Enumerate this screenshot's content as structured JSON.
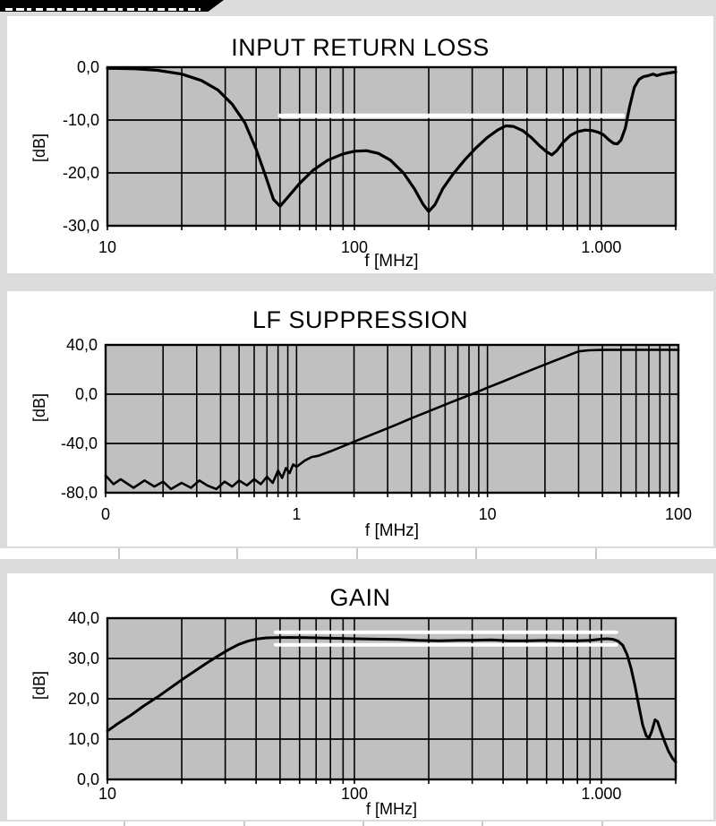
{
  "banner": {
    "text": "",
    "background": "#000000",
    "note_text_cut_off": true
  },
  "colors": {
    "page_band": "#dcdcdc",
    "panel": "#ffffff",
    "plot_bg": "#c0c0c0",
    "grid": "#000000",
    "curve": "#000000",
    "limit_line": "#ffffff",
    "table_row_divider": "#c8c8c8"
  },
  "chart_data": [
    {
      "type": "line",
      "title": "INPUT RETURN LOSS",
      "xlabel": "f [MHz]",
      "ylabel": "[dB]",
      "xscale": "log",
      "xlim": [
        10,
        2000
      ],
      "ylim": [
        -30,
        0
      ],
      "grid": "full log grid, on",
      "xticks": [
        {
          "v": 10,
          "label": "10"
        },
        {
          "v": 100,
          "label": "100"
        },
        {
          "v": 1000,
          "label": "1.000"
        }
      ],
      "yticks": [
        {
          "v": 0,
          "label": "0,0"
        },
        {
          "v": -10,
          "label": "-10,0"
        },
        {
          "v": -20,
          "label": "-20,0"
        },
        {
          "v": -30,
          "label": "-30,0"
        }
      ],
      "ygrid": [
        -10,
        -20
      ],
      "limit_lines": [
        {
          "value": -9.2,
          "from": 50,
          "to": 1220,
          "stroke": 5
        }
      ],
      "series": [
        {
          "name": "input_return_loss",
          "stroke": 3.2,
          "points": [
            [
              10,
              -0.2
            ],
            [
              13,
              -0.3
            ],
            [
              16,
              -0.6
            ],
            [
              20,
              -1.3
            ],
            [
              24,
              -2.5
            ],
            [
              28,
              -4.3
            ],
            [
              32,
              -7
            ],
            [
              36,
              -10.5
            ],
            [
              40,
              -15.5
            ],
            [
              44,
              -21
            ],
            [
              47,
              -25
            ],
            [
              50,
              -26.3
            ],
            [
              54,
              -24.5
            ],
            [
              60,
              -22
            ],
            [
              68,
              -19.5
            ],
            [
              78,
              -17.6
            ],
            [
              90,
              -16.4
            ],
            [
              100,
              -15.9
            ],
            [
              112,
              -15.8
            ],
            [
              125,
              -16.3
            ],
            [
              140,
              -17.6
            ],
            [
              158,
              -20
            ],
            [
              175,
              -23
            ],
            [
              190,
              -26
            ],
            [
              200,
              -27.3
            ],
            [
              212,
              -26
            ],
            [
              228,
              -23
            ],
            [
              250,
              -20.3
            ],
            [
              280,
              -17.5
            ],
            [
              310,
              -15.3
            ],
            [
              345,
              -13.3
            ],
            [
              380,
              -11.9
            ],
            [
              410,
              -11.1
            ],
            [
              440,
              -11.2
            ],
            [
              480,
              -12
            ],
            [
              520,
              -13.3
            ],
            [
              560,
              -14.8
            ],
            [
              600,
              -16
            ],
            [
              630,
              -16.6
            ],
            [
              660,
              -15.8
            ],
            [
              700,
              -14.2
            ],
            [
              750,
              -12.9
            ],
            [
              800,
              -12.2
            ],
            [
              860,
              -11.9
            ],
            [
              920,
              -12
            ],
            [
              970,
              -12.3
            ],
            [
              1020,
              -12.8
            ],
            [
              1070,
              -13.7
            ],
            [
              1120,
              -14.4
            ],
            [
              1160,
              -14.5
            ],
            [
              1200,
              -13.8
            ],
            [
              1250,
              -11.5
            ],
            [
              1300,
              -7.5
            ],
            [
              1360,
              -3.8
            ],
            [
              1420,
              -2.3
            ],
            [
              1480,
              -1.8
            ],
            [
              1550,
              -1.6
            ],
            [
              1620,
              -1.3
            ],
            [
              1680,
              -1.6
            ],
            [
              1760,
              -1.3
            ],
            [
              1870,
              -1.1
            ],
            [
              2000,
              -0.9
            ]
          ]
        }
      ]
    },
    {
      "type": "line",
      "title": "LF SUPPRESSION",
      "xlabel": "f [MHz]",
      "ylabel": "[dB]",
      "xscale": "log",
      "xlim": [
        0.1,
        100
      ],
      "ylim": [
        -80,
        40
      ],
      "grid": "full log grid, on",
      "xticks": [
        {
          "v": 0.1,
          "label": "0"
        },
        {
          "v": 1,
          "label": "1"
        },
        {
          "v": 10,
          "label": "10"
        },
        {
          "v": 100,
          "label": "100"
        }
      ],
      "yticks": [
        {
          "v": 40,
          "label": "40,0"
        },
        {
          "v": 0,
          "label": "0,0"
        },
        {
          "v": -40,
          "label": "-40,0"
        },
        {
          "v": -80,
          "label": "-80,0"
        }
      ],
      "ygrid": [
        0,
        -40
      ],
      "limit_lines": [],
      "series": [
        {
          "name": "lf_suppression",
          "stroke": 2.6,
          "points": [
            [
              0.1,
              -66
            ],
            [
              0.11,
              -73
            ],
            [
              0.12,
              -69
            ],
            [
              0.14,
              -76
            ],
            [
              0.16,
              -70
            ],
            [
              0.18,
              -75
            ],
            [
              0.2,
              -71
            ],
            [
              0.22,
              -77
            ],
            [
              0.25,
              -72
            ],
            [
              0.28,
              -76
            ],
            [
              0.31,
              -70
            ],
            [
              0.34,
              -74
            ],
            [
              0.38,
              -77
            ],
            [
              0.42,
              -71
            ],
            [
              0.46,
              -75
            ],
            [
              0.5,
              -70
            ],
            [
              0.55,
              -74
            ],
            [
              0.6,
              -69
            ],
            [
              0.65,
              -73
            ],
            [
              0.7,
              -67
            ],
            [
              0.75,
              -72
            ],
            [
              0.8,
              -62
            ],
            [
              0.84,
              -68
            ],
            [
              0.88,
              -60
            ],
            [
              0.92,
              -64
            ],
            [
              0.96,
              -57
            ],
            [
              1.0,
              -59
            ],
            [
              1.1,
              -54
            ],
            [
              1.2,
              -51
            ],
            [
              1.3,
              -50
            ],
            [
              1.5,
              -46.5
            ],
            [
              1.8,
              -41.5
            ],
            [
              2.2,
              -36
            ],
            [
              2.7,
              -30.5
            ],
            [
              3.3,
              -25
            ],
            [
              4,
              -19.5
            ],
            [
              5,
              -13.5
            ],
            [
              6,
              -8.5
            ],
            [
              7,
              -4.4
            ],
            [
              8.5,
              0.7
            ],
            [
              10,
              5.3
            ],
            [
              12,
              10.2
            ],
            [
              15,
              16.3
            ],
            [
              18,
              21.2
            ],
            [
              22,
              26.6
            ],
            [
              26,
              31
            ],
            [
              30,
              34.8
            ],
            [
              34,
              35.6
            ],
            [
              40,
              35.9
            ],
            [
              50,
              36
            ],
            [
              62,
              36
            ],
            [
              75,
              36
            ],
            [
              90,
              36
            ],
            [
              100,
              36
            ]
          ]
        }
      ]
    },
    {
      "type": "line",
      "title": "GAIN",
      "xlabel": "f [MHz]",
      "ylabel": "[dB]",
      "xscale": "log",
      "xlim": [
        10,
        2000
      ],
      "ylim": [
        0,
        40
      ],
      "grid": "full log grid, on",
      "xticks": [
        {
          "v": 10,
          "label": "10"
        },
        {
          "v": 100,
          "label": "100"
        },
        {
          "v": 1000,
          "label": "1.000"
        }
      ],
      "yticks": [
        {
          "v": 40,
          "label": "40,0"
        },
        {
          "v": 30,
          "label": "30,0"
        },
        {
          "v": 20,
          "label": "20,0"
        },
        {
          "v": 10,
          "label": "10,0"
        },
        {
          "v": 0,
          "label": "0,0"
        }
      ],
      "ygrid": [
        30,
        20,
        10
      ],
      "limit_lines": [
        {
          "value": 36.5,
          "from": 48,
          "to": 1150,
          "stroke": 4
        },
        {
          "value": 33.4,
          "from": 48,
          "to": 1150,
          "stroke": 4
        }
      ],
      "series": [
        {
          "name": "gain",
          "stroke": 3,
          "points": [
            [
              10,
              12
            ],
            [
              11,
              13.8
            ],
            [
              12.5,
              16
            ],
            [
              14,
              18.2
            ],
            [
              16,
              20.5
            ],
            [
              18,
              22.7
            ],
            [
              20,
              24.7
            ],
            [
              22.5,
              26.8
            ],
            [
              25,
              28.7
            ],
            [
              28,
              30.6
            ],
            [
              31,
              32.2
            ],
            [
              34,
              33.5
            ],
            [
              37,
              34.3
            ],
            [
              40,
              34.8
            ],
            [
              44,
              35.1
            ],
            [
              50,
              35.2
            ],
            [
              60,
              35.2
            ],
            [
              70,
              35.1
            ],
            [
              85,
              35.0
            ],
            [
              100,
              34.9
            ],
            [
              120,
              34.8
            ],
            [
              150,
              34.7
            ],
            [
              180,
              34.5
            ],
            [
              220,
              34.4
            ],
            [
              260,
              34.5
            ],
            [
              300,
              34.5
            ],
            [
              360,
              34.6
            ],
            [
              420,
              34.4
            ],
            [
              500,
              34.4
            ],
            [
              600,
              34.5
            ],
            [
              700,
              34.4
            ],
            [
              800,
              34.4
            ],
            [
              900,
              34.5
            ],
            [
              1000,
              34.8
            ],
            [
              1060,
              34.9
            ],
            [
              1120,
              34.7
            ],
            [
              1170,
              34.3
            ],
            [
              1220,
              33.3
            ],
            [
              1270,
              31
            ],
            [
              1320,
              27.5
            ],
            [
              1370,
              23
            ],
            [
              1420,
              18
            ],
            [
              1470,
              13.5
            ],
            [
              1520,
              10.8
            ],
            [
              1560,
              10.3
            ],
            [
              1600,
              12
            ],
            [
              1650,
              14.8
            ],
            [
              1690,
              14.3
            ],
            [
              1740,
              12
            ],
            [
              1800,
              9.5
            ],
            [
              1870,
              7
            ],
            [
              1940,
              5.3
            ],
            [
              2000,
              4.3
            ]
          ]
        }
      ]
    }
  ]
}
